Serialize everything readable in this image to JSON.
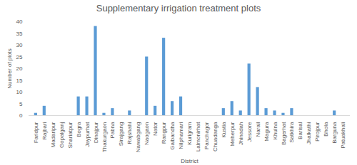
{
  "chart_data": {
    "type": "bar",
    "title": "Supplementary irrigation treatment plots",
    "x_label": "District",
    "y_label": "Number of plots",
    "categories": [
      "Faridpur",
      "Rajbari",
      "Madaripur",
      "Gopalganj",
      "Shariatpur",
      "Bogra",
      "Jaypurhat",
      "Dinajpur",
      "Thakurgaon",
      "Pabna",
      "Sirajgang",
      "Rajshahi",
      "Nawabgang",
      "Naogaon",
      "Nator",
      "Rangpur",
      "Gaibandha",
      "Nilphamari",
      "Kurigram",
      "Lalmonirhat",
      "Panchagor",
      "Chuadanga",
      "Kustia",
      "Meherpur",
      "Jhinadah",
      "Jessore",
      "Narail",
      "Magura",
      "Khulna",
      "Bagerhat",
      "Satkhira",
      "Barisal",
      "Jhalkathi",
      "Pirojpur",
      "Bhola",
      "Barguna",
      "Patuakhali"
    ],
    "values": [
      1,
      4,
      0,
      0,
      0,
      8,
      8,
      38,
      1,
      3,
      0,
      2,
      0,
      25,
      4,
      33,
      6,
      8,
      0,
      0,
      0,
      0,
      3,
      6,
      2,
      22,
      12,
      3,
      2,
      1,
      3,
      0,
      0,
      0,
      0,
      2,
      0
    ],
    "color": "#5b9bd5",
    "ylim": [
      0,
      40
    ],
    "yticks": [
      0,
      5,
      10,
      15,
      20,
      25,
      30,
      35,
      40
    ],
    "grid": false
  }
}
